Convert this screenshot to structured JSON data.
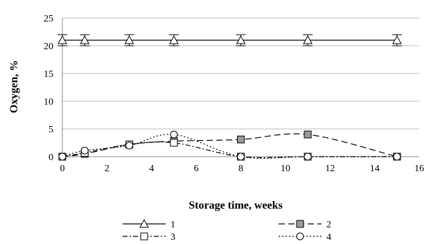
{
  "chart_data": {
    "type": "line",
    "title": "",
    "xlabel": "Storage time, weeks",
    "ylabel": "Oxygen, %",
    "xlim": [
      0,
      16
    ],
    "ylim": [
      0,
      25
    ],
    "xticks": [
      0,
      2,
      4,
      6,
      8,
      10,
      12,
      14,
      16
    ],
    "yticks": [
      0,
      5,
      10,
      15,
      20,
      25
    ],
    "grid": "horizontal",
    "legend_position": "bottom",
    "series": [
      {
        "name": "1",
        "marker": "triangle-open",
        "line": "solid",
        "smooth": false,
        "error_bars": true,
        "error": 1,
        "points": [
          [
            0,
            21
          ],
          [
            1,
            21
          ],
          [
            3,
            21
          ],
          [
            5,
            21
          ],
          [
            8,
            21
          ],
          [
            11,
            21
          ],
          [
            15,
            21
          ]
        ]
      },
      {
        "name": "2",
        "marker": "square-gray",
        "line": "long-dash",
        "smooth": true,
        "points": [
          [
            0,
            0
          ],
          [
            1,
            0.5
          ],
          [
            3,
            2.2
          ],
          [
            5,
            2.8
          ],
          [
            8,
            3.1
          ],
          [
            11,
            4
          ],
          [
            15,
            0
          ]
        ]
      },
      {
        "name": "3",
        "marker": "square-open",
        "line": "dash-dot",
        "smooth": true,
        "points": [
          [
            0,
            0
          ],
          [
            1,
            0.7
          ],
          [
            3,
            2.2
          ],
          [
            5,
            2.5
          ],
          [
            8,
            0
          ],
          [
            11,
            0
          ],
          [
            15,
            0
          ]
        ]
      },
      {
        "name": "4",
        "marker": "circle-open",
        "line": "dotted",
        "smooth": true,
        "points": [
          [
            0,
            0
          ],
          [
            1,
            1.1
          ],
          [
            3,
            2
          ],
          [
            5,
            4
          ],
          [
            8,
            0
          ],
          [
            11,
            0
          ],
          [
            15,
            0
          ]
        ]
      }
    ]
  }
}
